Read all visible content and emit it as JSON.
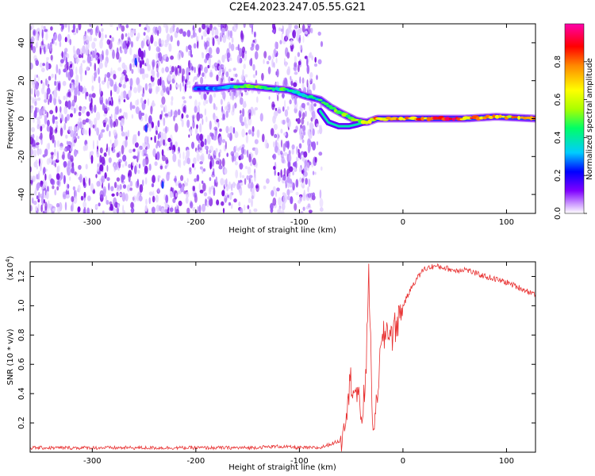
{
  "title": "C2E4.2023.247.05.55.G21",
  "colors": {
    "snr_line": "#e83030",
    "spectrogram_noise": "#7a12e0",
    "ridge_core": "#ff2020"
  },
  "chart_data": [
    {
      "type": "heatmap",
      "xlabel": "Height of straight line (km)",
      "ylabel": "Frequency (Hz)",
      "xlim": [
        -360,
        128
      ],
      "ylim": [
        -50,
        50
      ],
      "xticks": [
        -300,
        -200,
        -100,
        0,
        100
      ],
      "yticks": [
        -40,
        -20,
        0,
        20,
        40
      ],
      "colorbar": {
        "label": "Normalized spectral amplitude",
        "range": [
          0,
          1
        ],
        "ticks": [
          "0.0",
          "0.2",
          "0.4",
          "0.6",
          "0.8"
        ],
        "colormap": [
          "#ffffff",
          "#cc99ff",
          "#7f00ff",
          "#0000ff",
          "#00ccff",
          "#00ff66",
          "#aaff00",
          "#ffff00",
          "#ff8800",
          "#ff0000",
          "#ff00aa"
        ]
      },
      "noise_region": {
        "x_from": -360,
        "x_to": -78,
        "gap_from": -140,
        "gap_to": -127
      },
      "signal_ridge": [
        {
          "x": -200,
          "y": 16,
          "amp": 0.35
        },
        {
          "x": -180,
          "y": 16,
          "amp": 0.45
        },
        {
          "x": -165,
          "y": 17,
          "amp": 0.5
        },
        {
          "x": -150,
          "y": 17,
          "amp": 0.55
        },
        {
          "x": -130,
          "y": 16,
          "amp": 0.6
        },
        {
          "x": -110,
          "y": 15,
          "amp": 0.5
        },
        {
          "x": -95,
          "y": 12,
          "amp": 0.5
        },
        {
          "x": -80,
          "y": 10,
          "amp": 0.55
        },
        {
          "x": -70,
          "y": 6,
          "amp": 0.55
        },
        {
          "x": -60,
          "y": 3,
          "amp": 0.6
        },
        {
          "x": -45,
          "y": -1,
          "amp": 0.65
        },
        {
          "x": -35,
          "y": -2,
          "amp": 0.7
        },
        {
          "x": -25,
          "y": 0,
          "amp": 0.85
        },
        {
          "x": 0,
          "y": 0,
          "amp": 0.9
        },
        {
          "x": 30,
          "y": 0,
          "amp": 0.95
        },
        {
          "x": 60,
          "y": 0,
          "amp": 0.9
        },
        {
          "x": 90,
          "y": 1,
          "amp": 0.85
        },
        {
          "x": 128,
          "y": 0,
          "amp": 0.8
        }
      ]
    },
    {
      "type": "line",
      "xlabel": "Height of straight line (km)",
      "ylabel": "SNR (10 * v/v)",
      "y_multiplier": "(x10",
      "y_multiplier_exp": "4",
      "y_multiplier_close": ")",
      "xlim": [
        -360,
        128
      ],
      "ylim": [
        0,
        1.3
      ],
      "xticks": [
        -300,
        -200,
        -100,
        0,
        100
      ],
      "yticks": [
        "0.2",
        "0.4",
        "0.6",
        "0.8",
        "1.0",
        "1.2"
      ],
      "series": [
        {
          "x": [
            -360,
            -300,
            -200,
            -150,
            -120,
            -100,
            -80,
            -60,
            -55,
            -50,
            -45,
            -40,
            -36,
            -33,
            -30,
            -27,
            -24,
            -20,
            -15,
            -10,
            -5,
            0,
            10,
            20,
            30,
            40,
            50,
            60,
            70,
            80,
            90,
            100,
            110,
            120,
            128
          ],
          "y": [
            0.03,
            0.03,
            0.03,
            0.03,
            0.04,
            0.03,
            0.03,
            0.08,
            0.3,
            0.5,
            0.4,
            0.25,
            0.45,
            1.3,
            0.3,
            0.15,
            0.5,
            0.75,
            0.85,
            0.8,
            0.9,
            1.0,
            1.15,
            1.25,
            1.27,
            1.26,
            1.24,
            1.25,
            1.22,
            1.2,
            1.18,
            1.16,
            1.13,
            1.1,
            1.08
          ]
        }
      ]
    }
  ]
}
